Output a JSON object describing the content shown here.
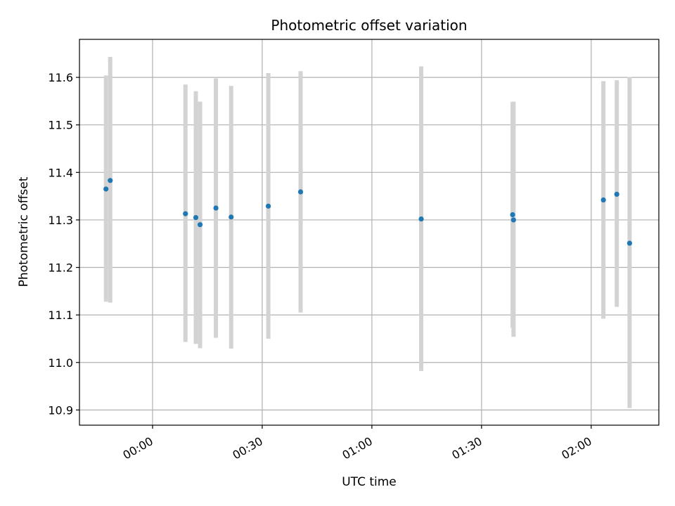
{
  "chart_data": {
    "type": "scatter",
    "title": "Photometric offset variation",
    "xlabel": "UTC time",
    "ylabel": "Photometric offset",
    "x_axis_format": "HH:MM",
    "xlim": [
      "-00:20:00",
      "02:18:30"
    ],
    "ylim": [
      10.868,
      11.68
    ],
    "x_ticks": [
      "00:00",
      "00:30",
      "01:00",
      "01:30",
      "02:00"
    ],
    "y_ticks": [
      "10.9",
      "11.0",
      "11.1",
      "11.2",
      "11.3",
      "11.4",
      "11.5",
      "11.6"
    ],
    "grid": true,
    "point_color": "#1f77b4",
    "errorbar_color": "#d3d3d3",
    "points": [
      {
        "x": "-00:12:45",
        "y": 11.365,
        "ylow": 11.128,
        "yhigh": 11.604
      },
      {
        "x": "-00:11:35",
        "y": 11.383,
        "ylow": 11.126,
        "yhigh": 11.643
      },
      {
        "x": "00:09:00",
        "y": 11.313,
        "ylow": 11.043,
        "yhigh": 11.585
      },
      {
        "x": "00:11:50",
        "y": 11.305,
        "ylow": 11.039,
        "yhigh": 11.571
      },
      {
        "x": "00:13:00",
        "y": 11.29,
        "ylow": 11.03,
        "yhigh": 11.549
      },
      {
        "x": "00:17:20",
        "y": 11.325,
        "ylow": 11.052,
        "yhigh": 11.598
      },
      {
        "x": "00:21:30",
        "y": 11.306,
        "ylow": 11.029,
        "yhigh": 11.582
      },
      {
        "x": "00:31:40",
        "y": 11.329,
        "ylow": 11.05,
        "yhigh": 11.609
      },
      {
        "x": "00:40:30",
        "y": 11.359,
        "ylow": 11.105,
        "yhigh": 11.613
      },
      {
        "x": "01:13:30",
        "y": 11.302,
        "ylow": 10.982,
        "yhigh": 11.623
      },
      {
        "x": "01:38:30",
        "y": 11.311,
        "ylow": 11.073,
        "yhigh": 11.548
      },
      {
        "x": "01:38:45",
        "y": 11.3,
        "ylow": 11.054,
        "yhigh": 11.549
      },
      {
        "x": "02:03:20",
        "y": 11.342,
        "ylow": 11.092,
        "yhigh": 11.592
      },
      {
        "x": "02:07:00",
        "y": 11.354,
        "ylow": 11.117,
        "yhigh": 11.594
      },
      {
        "x": "02:10:30",
        "y": 11.251,
        "ylow": 10.904,
        "yhigh": 11.601
      }
    ]
  }
}
